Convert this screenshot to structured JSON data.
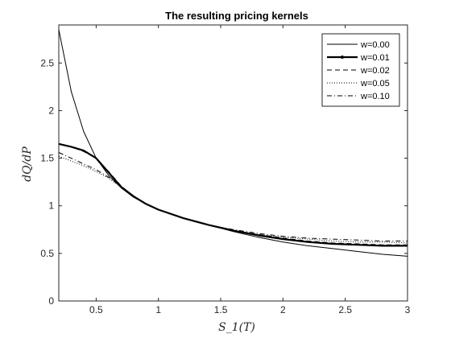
{
  "chart_data": {
    "type": "line",
    "title": "The resulting pricing kernels",
    "xlabel": "S_1(T)",
    "ylabel": "dQ/dP",
    "xlim": [
      0.2,
      3
    ],
    "ylim": [
      0,
      2.9
    ],
    "xticks": [
      0.5,
      1,
      1.5,
      2,
      2.5,
      3
    ],
    "yticks": [
      0,
      0.5,
      1,
      1.5,
      2,
      2.5
    ],
    "xtick_labels": [
      "0.5",
      "1",
      "1.5",
      "2",
      "2.5",
      "3"
    ],
    "ytick_labels": [
      "0",
      "0.5",
      "1",
      "1.5",
      "2",
      "2.5"
    ],
    "grid": false,
    "legend_position": "top-right",
    "x": [
      0.2,
      0.3,
      0.4,
      0.5,
      0.6,
      0.7,
      0.8,
      0.9,
      1.0,
      1.2,
      1.4,
      1.6,
      1.8,
      2.0,
      2.2,
      2.4,
      2.6,
      2.8,
      3.0
    ],
    "series": [
      {
        "name": "w=0.00",
        "color": "#000000",
        "style": "solid",
        "values": [
          2.85,
          2.2,
          1.78,
          1.5,
          1.32,
          1.19,
          1.09,
          1.02,
          0.96,
          0.87,
          0.8,
          0.73,
          0.67,
          0.62,
          0.58,
          0.55,
          0.52,
          0.49,
          0.47
        ]
      },
      {
        "name": "w=0.01",
        "color": "#000000",
        "style": "solid-thick-marker",
        "values": [
          1.65,
          1.62,
          1.58,
          1.5,
          1.35,
          1.2,
          1.1,
          1.02,
          0.96,
          0.87,
          0.8,
          0.74,
          0.69,
          0.65,
          0.62,
          0.6,
          0.59,
          0.58,
          0.58
        ]
      },
      {
        "name": "w=0.02",
        "color": "#000000",
        "style": "dashed",
        "values": [
          1.65,
          1.62,
          1.57,
          1.5,
          1.36,
          1.21,
          1.1,
          1.02,
          0.96,
          0.87,
          0.8,
          0.74,
          0.7,
          0.66,
          0.63,
          0.61,
          0.6,
          0.59,
          0.59
        ]
      },
      {
        "name": "w=0.05",
        "color": "#000000",
        "style": "dotted",
        "values": [
          1.52,
          1.47,
          1.42,
          1.36,
          1.29,
          1.2,
          1.1,
          1.02,
          0.96,
          0.87,
          0.8,
          0.74,
          0.7,
          0.67,
          0.65,
          0.63,
          0.62,
          0.62,
          0.61
        ]
      },
      {
        "name": "w=0.10",
        "color": "#000000",
        "style": "dashdot",
        "values": [
          1.56,
          1.5,
          1.44,
          1.38,
          1.3,
          1.2,
          1.1,
          1.02,
          0.96,
          0.87,
          0.8,
          0.75,
          0.71,
          0.68,
          0.66,
          0.65,
          0.64,
          0.63,
          0.63
        ]
      }
    ]
  }
}
